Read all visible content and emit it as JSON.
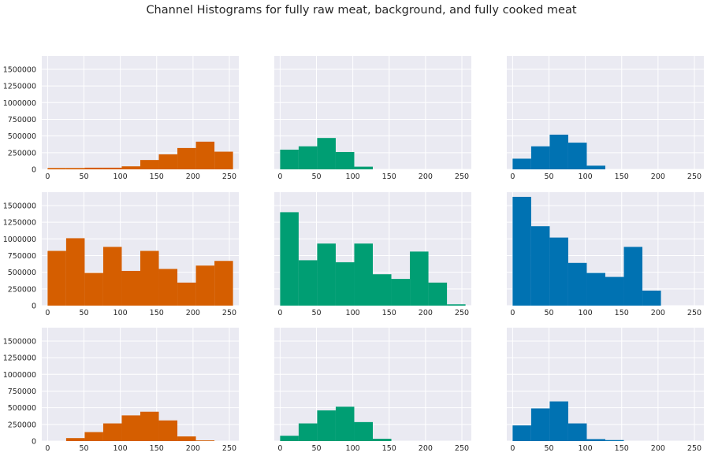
{
  "title": "Channel Histograms for fully raw meat, background, and fully cooked meat",
  "chart_data": [
    {
      "type": "bar",
      "title": "",
      "xlabel": "",
      "ylabel": "",
      "xlim": [
        -8,
        263
      ],
      "ylim": [
        0,
        1700000
      ],
      "grid": true,
      "x_ticks": [
        0,
        50,
        100,
        150,
        200,
        250
      ],
      "y_ticks": [
        0,
        250000,
        500000,
        750000,
        1000000,
        1250000,
        1500000
      ],
      "colors": {
        "red": "#d55e00",
        "green": "#009e73",
        "blue": "#0072b2"
      },
      "bin_edges": [
        0,
        25.5,
        51,
        76.5,
        102,
        127.5,
        153,
        178.5,
        204,
        229.5,
        255
      ],
      "panels": [
        {
          "channel": "red",
          "row": 0,
          "col": 0,
          "values": [
            20000,
            20000,
            25000,
            25000,
            45000,
            140000,
            225000,
            320000,
            415000,
            265000
          ]
        },
        {
          "channel": "green",
          "row": 0,
          "col": 1,
          "values": [
            295000,
            345000,
            470000,
            260000,
            40000,
            0,
            0,
            0,
            0,
            0
          ]
        },
        {
          "channel": "blue",
          "row": 0,
          "col": 2,
          "values": [
            160000,
            345000,
            520000,
            400000,
            55000,
            0,
            0,
            0,
            0,
            0
          ]
        },
        {
          "channel": "red",
          "row": 1,
          "col": 0,
          "values": [
            820000,
            1010000,
            490000,
            880000,
            520000,
            820000,
            550000,
            345000,
            600000,
            670000
          ]
        },
        {
          "channel": "green",
          "row": 1,
          "col": 1,
          "values": [
            1400000,
            680000,
            930000,
            650000,
            930000,
            470000,
            400000,
            810000,
            345000,
            20000
          ]
        },
        {
          "channel": "blue",
          "row": 1,
          "col": 2,
          "values": [
            1630000,
            1190000,
            1020000,
            640000,
            490000,
            430000,
            880000,
            225000,
            0,
            0
          ]
        },
        {
          "channel": "red",
          "row": 2,
          "col": 0,
          "values": [
            0,
            45000,
            135000,
            265000,
            385000,
            440000,
            310000,
            70000,
            10000,
            0
          ]
        },
        {
          "channel": "green",
          "row": 2,
          "col": 1,
          "values": [
            80000,
            265000,
            460000,
            515000,
            285000,
            35000,
            0,
            0,
            0,
            0
          ]
        },
        {
          "channel": "blue",
          "row": 2,
          "col": 2,
          "values": [
            235000,
            490000,
            595000,
            265000,
            30000,
            15000,
            0,
            0,
            0,
            0
          ]
        }
      ]
    }
  ]
}
